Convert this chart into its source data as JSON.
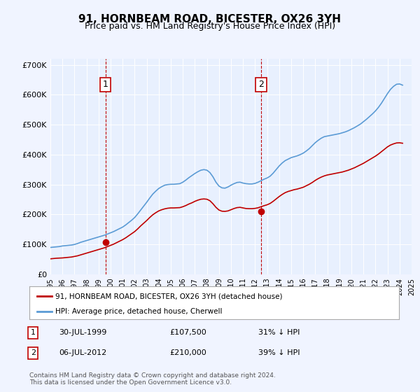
{
  "title": "91, HORNBEAM ROAD, BICESTER, OX26 3YH",
  "subtitle": "Price paid vs. HM Land Registry's House Price Index (HPI)",
  "background_color": "#f0f4ff",
  "plot_bg_color": "#e8f0fe",
  "legend_line1": "91, HORNBEAM ROAD, BICESTER, OX26 3YH (detached house)",
  "legend_line2": "HPI: Average price, detached house, Cherwell",
  "footnote": "Contains HM Land Registry data © Crown copyright and database right 2024.\nThis data is licensed under the Open Government Licence v3.0.",
  "annotation1_label": "1",
  "annotation1_date": "30-JUL-1999",
  "annotation1_price": "£107,500",
  "annotation1_hpi": "31% ↓ HPI",
  "annotation2_label": "2",
  "annotation2_date": "06-JUL-2012",
  "annotation2_price": "£210,000",
  "annotation2_hpi": "39% ↓ HPI",
  "hpi_color": "#5b9bd5",
  "price_color": "#c00000",
  "marker_color": "#c00000",
  "vline_color": "#c00000",
  "ylim": [
    0,
    720000
  ],
  "yticks": [
    0,
    100000,
    200000,
    300000,
    400000,
    500000,
    600000,
    700000
  ],
  "ytick_labels": [
    "£0",
    "£100K",
    "£200K",
    "£300K",
    "£400K",
    "£500K",
    "£600K",
    "£700K"
  ],
  "hpi_years": [
    1995,
    1995.25,
    1995.5,
    1995.75,
    1996,
    1996.25,
    1996.5,
    1996.75,
    1997,
    1997.25,
    1997.5,
    1997.75,
    1998,
    1998.25,
    1998.5,
    1998.75,
    1999,
    1999.25,
    1999.5,
    1999.75,
    2000,
    2000.25,
    2000.5,
    2000.75,
    2001,
    2001.25,
    2001.5,
    2001.75,
    2002,
    2002.25,
    2002.5,
    2002.75,
    2003,
    2003.25,
    2003.5,
    2003.75,
    2004,
    2004.25,
    2004.5,
    2004.75,
    2005,
    2005.25,
    2005.5,
    2005.75,
    2006,
    2006.25,
    2006.5,
    2006.75,
    2007,
    2007.25,
    2007.5,
    2007.75,
    2008,
    2008.25,
    2008.5,
    2008.75,
    2009,
    2009.25,
    2009.5,
    2009.75,
    2010,
    2010.25,
    2010.5,
    2010.75,
    2011,
    2011.25,
    2011.5,
    2011.75,
    2012,
    2012.25,
    2012.5,
    2012.75,
    2013,
    2013.25,
    2013.5,
    2013.75,
    2014,
    2014.25,
    2014.5,
    2014.75,
    2015,
    2015.25,
    2015.5,
    2015.75,
    2016,
    2016.25,
    2016.5,
    2016.75,
    2017,
    2017.25,
    2017.5,
    2017.75,
    2018,
    2018.25,
    2018.5,
    2018.75,
    2019,
    2019.25,
    2019.5,
    2019.75,
    2020,
    2020.25,
    2020.5,
    2020.75,
    2021,
    2021.25,
    2021.5,
    2021.75,
    2022,
    2022.25,
    2022.5,
    2022.75,
    2023,
    2023.25,
    2023.5,
    2023.75,
    2024,
    2024.25
  ],
  "hpi_values": [
    90000,
    91000,
    92000,
    93000,
    95000,
    96000,
    97000,
    98000,
    100000,
    103000,
    107000,
    110000,
    113000,
    116000,
    119000,
    122000,
    125000,
    128000,
    131000,
    135000,
    139000,
    143000,
    148000,
    153000,
    158000,
    165000,
    173000,
    181000,
    190000,
    202000,
    215000,
    228000,
    241000,
    255000,
    268000,
    278000,
    287000,
    293000,
    298000,
    300000,
    301000,
    301000,
    302000,
    303000,
    308000,
    315000,
    323000,
    330000,
    337000,
    343000,
    348000,
    350000,
    348000,
    340000,
    326000,
    308000,
    295000,
    289000,
    288000,
    292000,
    298000,
    303000,
    307000,
    308000,
    305000,
    303000,
    302000,
    302000,
    304000,
    308000,
    313000,
    318000,
    322000,
    328000,
    338000,
    350000,
    362000,
    372000,
    380000,
    385000,
    390000,
    393000,
    396000,
    400000,
    405000,
    412000,
    420000,
    430000,
    440000,
    448000,
    455000,
    460000,
    462000,
    464000,
    466000,
    468000,
    470000,
    473000,
    476000,
    480000,
    485000,
    490000,
    496000,
    502000,
    510000,
    518000,
    527000,
    536000,
    546000,
    558000,
    572000,
    588000,
    604000,
    618000,
    628000,
    635000,
    636000,
    632000
  ],
  "price_years": [
    1995,
    1995.25,
    1995.5,
    1995.75,
    1996,
    1996.25,
    1996.5,
    1996.75,
    1997,
    1997.25,
    1997.5,
    1997.75,
    1998,
    1998.25,
    1998.5,
    1998.75,
    1999,
    1999.25,
    1999.5,
    1999.75,
    2000,
    2000.25,
    2000.5,
    2000.75,
    2001,
    2001.25,
    2001.5,
    2001.75,
    2002,
    2002.25,
    2002.5,
    2002.75,
    2003,
    2003.25,
    2003.5,
    2003.75,
    2004,
    2004.25,
    2004.5,
    2004.75,
    2005,
    2005.25,
    2005.5,
    2005.75,
    2006,
    2006.25,
    2006.5,
    2006.75,
    2007,
    2007.25,
    2007.5,
    2007.75,
    2008,
    2008.25,
    2008.5,
    2008.75,
    2009,
    2009.25,
    2009.5,
    2009.75,
    2010,
    2010.25,
    2010.5,
    2010.75,
    2011,
    2011.25,
    2011.5,
    2011.75,
    2012,
    2012.25,
    2012.5,
    2012.75,
    2013,
    2013.25,
    2013.5,
    2013.75,
    2014,
    2014.25,
    2014.5,
    2014.75,
    2015,
    2015.25,
    2015.5,
    2015.75,
    2016,
    2016.25,
    2016.5,
    2016.75,
    2017,
    2017.25,
    2017.5,
    2017.75,
    2018,
    2018.25,
    2018.5,
    2018.75,
    2019,
    2019.25,
    2019.5,
    2019.75,
    2020,
    2020.25,
    2020.5,
    2020.75,
    2021,
    2021.25,
    2021.5,
    2021.75,
    2022,
    2022.25,
    2022.5,
    2022.75,
    2023,
    2023.25,
    2023.5,
    2023.75,
    2024,
    2024.25
  ],
  "price_values": [
    52000,
    53000,
    54000,
    54500,
    55000,
    56000,
    57000,
    58000,
    60000,
    62000,
    65000,
    68000,
    71000,
    74000,
    77000,
    80000,
    83000,
    86000,
    89000,
    93000,
    97000,
    101000,
    106000,
    111000,
    116000,
    122000,
    129000,
    136000,
    143000,
    152000,
    162000,
    171000,
    180000,
    190000,
    199000,
    206000,
    212000,
    216000,
    219000,
    221000,
    222000,
    222000,
    222500,
    223000,
    226000,
    230000,
    235000,
    239000,
    244000,
    248000,
    251000,
    252000,
    251000,
    246000,
    236000,
    224000,
    215000,
    211000,
    210500,
    212000,
    216000,
    220000,
    223000,
    224000,
    222000,
    220000,
    219500,
    219500,
    220500,
    222500,
    226000,
    229500,
    232500,
    237000,
    244000,
    252000,
    260000,
    267000,
    273000,
    277000,
    280000,
    283000,
    285000,
    288000,
    291000,
    296000,
    301000,
    307000,
    314000,
    320000,
    325000,
    329000,
    332000,
    334000,
    336000,
    338000,
    340000,
    342000,
    345000,
    348000,
    352000,
    356000,
    361000,
    366000,
    371000,
    377000,
    383000,
    389000,
    395000,
    402000,
    410000,
    418000,
    426000,
    432000,
    436000,
    439000,
    439500,
    438000
  ],
  "sale1_year": 1999.58,
  "sale1_price": 107500,
  "sale2_year": 2012.5,
  "sale2_price": 210000,
  "anno1_x": 1999.58,
  "anno2_x": 2012.5,
  "xmin": 1995,
  "xmax": 2025
}
